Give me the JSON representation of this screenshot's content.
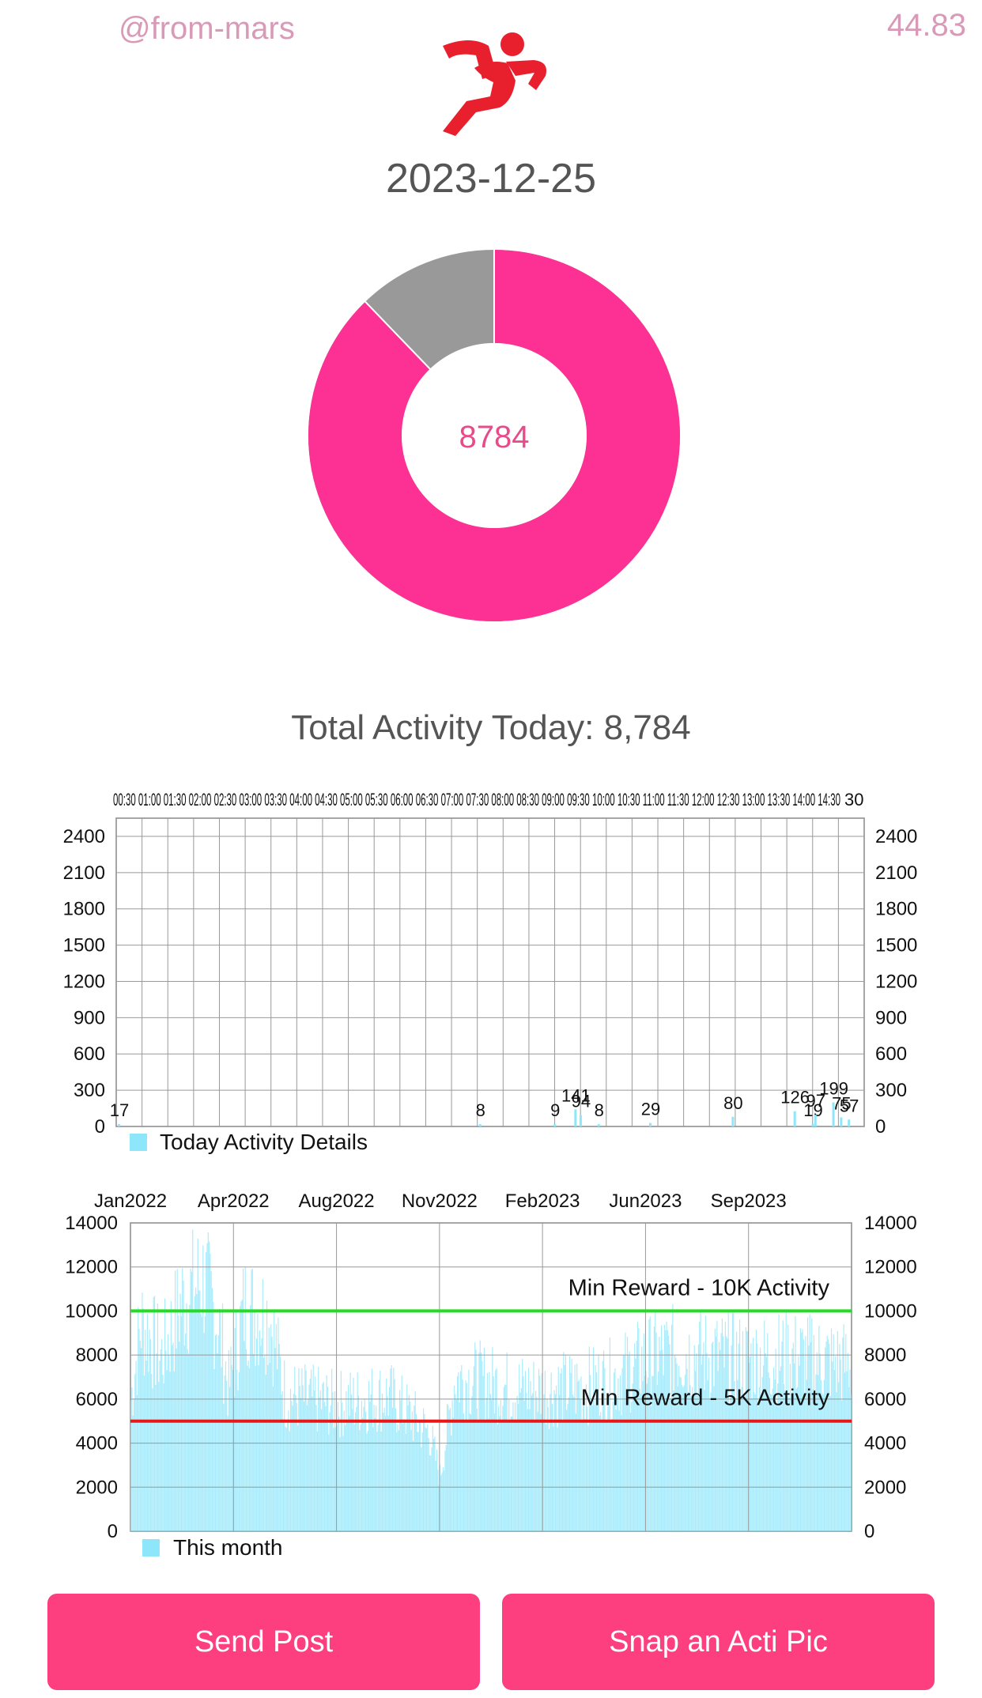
{
  "header": {
    "username": "@from-mars",
    "score": "44.83",
    "date": "2023-12-25"
  },
  "donut": {
    "center_value": "8784",
    "progress_fraction": 0.878,
    "progress_color": "#fd3094",
    "remainder_color": "#999999"
  },
  "total_label": "Total Activity Today: 8,784",
  "today_chart": {
    "type": "bar",
    "legend": "Today Activity Details",
    "bar_color": "#8ee6fa",
    "x_tick_labels_top": "00:30 01:00 01:30 02:00 02:30 03:00 03:30 04:00 04:30 05:00 05:30 06:00 06:30 07:00 07:30 08:00 08:30 09:00 09:30 10:00 10:30 11:00 11:30 12:00 12:30 13:00 13:30 14:00 14:30",
    "x_tick_label_last": "30",
    "y_ticks": [
      0,
      300,
      600,
      900,
      1200,
      1500,
      1800,
      2100,
      2400
    ],
    "ylim": [
      0,
      2550
    ],
    "bars": [
      {
        "slot": 0.0,
        "value": 17,
        "label": "17"
      },
      {
        "slot": 14.0,
        "value": 8,
        "label": "8"
      },
      {
        "slot": 16.9,
        "value": 9,
        "label": "9"
      },
      {
        "slot": 17.7,
        "value": 141,
        "label": "141"
      },
      {
        "slot": 17.9,
        "value": 94,
        "label": "94"
      },
      {
        "slot": 18.6,
        "value": 8,
        "label": "8"
      },
      {
        "slot": 20.6,
        "value": 29,
        "label": "29"
      },
      {
        "slot": 23.8,
        "value": 80,
        "label": "80"
      },
      {
        "slot": 26.2,
        "value": 126,
        "label": "126"
      },
      {
        "slot": 26.9,
        "value": 19,
        "label": "19"
      },
      {
        "slot": 27.0,
        "value": 97,
        "label": "97"
      },
      {
        "slot": 27.7,
        "value": 199,
        "label": "199"
      },
      {
        "slot": 28.0,
        "value": 75,
        "label": "75"
      },
      {
        "slot": 28.3,
        "value": 57,
        "label": "57"
      }
    ]
  },
  "history_chart": {
    "type": "bar",
    "legend": "This month",
    "bar_color": "#8ee6fa",
    "x_labels": [
      "Jan2022",
      "Apr2022",
      "Aug2022",
      "Nov2022",
      "Feb2023",
      "Jun2023",
      "Sep2023"
    ],
    "y_ticks": [
      0,
      2000,
      4000,
      6000,
      8000,
      10000,
      12000,
      14000
    ],
    "ylim": [
      0,
      14000
    ],
    "reference_lines": [
      {
        "value": 10000,
        "label": "Min Reward - 10K Activity",
        "color": "#22dd22"
      },
      {
        "value": 5000,
        "label": "Min Reward - 5K Activity",
        "color": "#e61919"
      }
    ],
    "daily_profile": [
      {
        "day_index": 0,
        "value": 6000
      },
      {
        "day_index": 10,
        "value": 9500
      },
      {
        "day_index": 30,
        "value": 8000
      },
      {
        "day_index": 50,
        "value": 10500
      },
      {
        "day_index": 70,
        "value": 11500
      },
      {
        "day_index": 85,
        "value": 9500
      },
      {
        "day_index": 95,
        "value": 6500
      },
      {
        "day_index": 110,
        "value": 10200
      },
      {
        "day_index": 135,
        "value": 9800
      },
      {
        "day_index": 150,
        "value": 6200
      },
      {
        "day_index": 200,
        "value": 5800
      },
      {
        "day_index": 250,
        "value": 6200
      },
      {
        "day_index": 290,
        "value": 4500
      },
      {
        "day_index": 300,
        "value": 2500
      },
      {
        "day_index": 315,
        "value": 7000
      },
      {
        "day_index": 345,
        "value": 6800
      },
      {
        "day_index": 370,
        "value": 6500
      },
      {
        "day_index": 400,
        "value": 6400
      },
      {
        "day_index": 440,
        "value": 6600
      },
      {
        "day_index": 470,
        "value": 7000
      },
      {
        "day_index": 500,
        "value": 7800
      },
      {
        "day_index": 530,
        "value": 8200
      },
      {
        "day_index": 560,
        "value": 8000
      },
      {
        "day_index": 600,
        "value": 7800
      },
      {
        "day_index": 640,
        "value": 8000
      },
      {
        "day_index": 699,
        "value": 7600
      }
    ],
    "day_count": 700
  },
  "buttons": {
    "send_post": "Send Post",
    "snap_pic": "Snap an Acti Pic"
  }
}
